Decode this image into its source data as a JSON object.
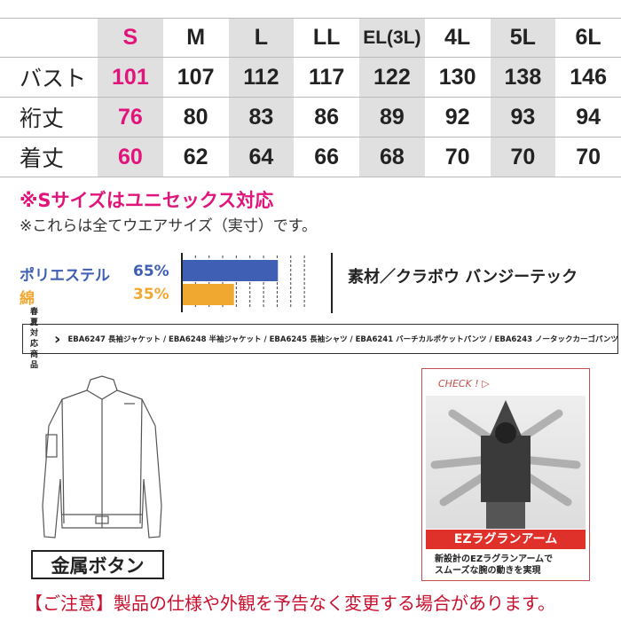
{
  "table": {
    "sizes": [
      "S",
      "M",
      "L",
      "LL",
      "EL(3L)",
      "4L",
      "5L",
      "6L"
    ],
    "rows": [
      {
        "label": "バスト",
        "values": [
          "101",
          "107",
          "112",
          "117",
          "122",
          "130",
          "138",
          "146"
        ]
      },
      {
        "label": "裄丈",
        "values": [
          "76",
          "80",
          "83",
          "86",
          "89",
          "92",
          "93",
          "94"
        ]
      },
      {
        "label": "着丈",
        "values": [
          "60",
          "62",
          "64",
          "66",
          "68",
          "70",
          "70",
          "70"
        ]
      }
    ]
  },
  "notes": {
    "unisex": "※Sサイズはユニセックス対応",
    "actual": "※これらは全てウエアサイズ（実寸）です。"
  },
  "composition": [
    {
      "name": "ポリエステル",
      "percent": "65%",
      "value": 65,
      "color": "#3f5fb5"
    },
    {
      "name": "綿",
      "percent": "35%",
      "value": 35,
      "color": "#f0a830"
    }
  ],
  "material": "素材／クラボウ バンジーテック",
  "products": {
    "label1": "春夏対応",
    "label2": "商品",
    "list": "EBA6247 長袖ジャケット / EBA6248 半袖ジャケット / EBA6245 長袖シャツ / EBA6241 バーチカルポケットパンツ / EBA6243 ノータックカーゴパンツ"
  },
  "feature": {
    "check": "CHECK ! ▷",
    "title": "EZラグランアーム",
    "desc1": "新設計のEZラグランアームで",
    "desc2": "スムーズな腕の動きを実現"
  },
  "button_label": "金属ボタン",
  "footer": "【ご注意】製品の仕様や外観を予告なく変更する場合があります。",
  "colors": {
    "pink": "#e0147a",
    "red": "#c8102e",
    "shade": "#e0e0e0"
  }
}
